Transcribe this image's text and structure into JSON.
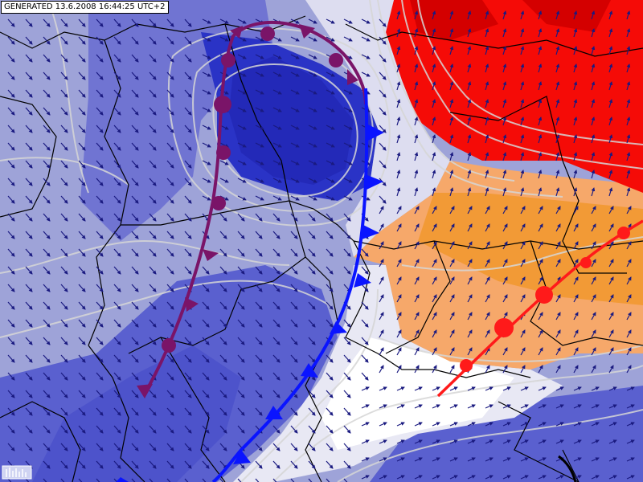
{
  "header": {
    "generated_label": "GENERATED 13.6.2008 16:44:25 UTC+2"
  },
  "map": {
    "colors": {
      "deep_blue": "#2a33c6",
      "mid_blue": "#5a60cf",
      "light_blue": "#9ea3d8",
      "pale": "#e8e8f4",
      "white": "#ffffff",
      "light_orange": "#f6a86a",
      "orange": "#f29a36",
      "red": "#f50b07",
      "dark_red": "#d40000",
      "cold_front": "#0a14ff",
      "occluded_front": "#7a1468",
      "warm_front": "#ff1a1a",
      "isoline": "#d6d6d6",
      "border": "#000000",
      "wind_arrow": "#1a1a80"
    },
    "fronts": [
      {
        "type": "occluded",
        "name": "occluded-front"
      },
      {
        "type": "cold",
        "name": "cold-front"
      },
      {
        "type": "warm",
        "name": "warm-front"
      }
    ],
    "wind_field": "wind-arrows"
  }
}
